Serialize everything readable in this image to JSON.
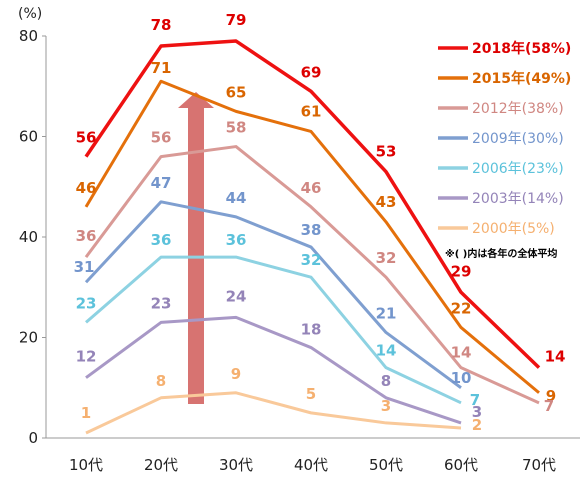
{
  "chart_data": {
    "type": "line",
    "ylabel": "(%)",
    "ylim": [
      0,
      80
    ],
    "yticks": [
      0,
      20,
      40,
      60,
      80
    ],
    "categories": [
      "10代",
      "20代",
      "30代",
      "40代",
      "50代",
      "60代",
      "70代"
    ],
    "grid": false,
    "legend_position": "right",
    "note": "※( )内は各年の全体平均",
    "series": [
      {
        "name": "2018年(58%)",
        "color": "#ee1111",
        "label_color": "#dd0000",
        "values": [
          56,
          78,
          79,
          69,
          53,
          29,
          14
        ]
      },
      {
        "name": "2015年(49%)",
        "color": "#e4700b",
        "label_color": "#d96500",
        "values": [
          46,
          71,
          65,
          61,
          43,
          22,
          9
        ]
      },
      {
        "name": "2012年(38%)",
        "color": "#d99a96",
        "label_color": "#d08782",
        "values": [
          36,
          56,
          58,
          46,
          32,
          14,
          7
        ]
      },
      {
        "name": "2009年(30%)",
        "color": "#7f9fd0",
        "label_color": "#7395cc",
        "values": [
          31,
          47,
          44,
          38,
          21,
          10,
          null
        ]
      },
      {
        "name": "2006年(23%)",
        "color": "#8dd2e2",
        "label_color": "#5cc2db",
        "values": [
          23,
          36,
          36,
          32,
          14,
          7,
          null
        ]
      },
      {
        "name": "2003年(14%)",
        "color": "#a898c6",
        "label_color": "#9484b8",
        "values": [
          12,
          23,
          24,
          18,
          8,
          3,
          null
        ]
      },
      {
        "name": "2000年(5%)",
        "color": "#f9c99a",
        "label_color": "#f5b070",
        "values": [
          1,
          8,
          9,
          5,
          3,
          2,
          null
        ]
      }
    ],
    "arrow_color": "#d05a58"
  }
}
